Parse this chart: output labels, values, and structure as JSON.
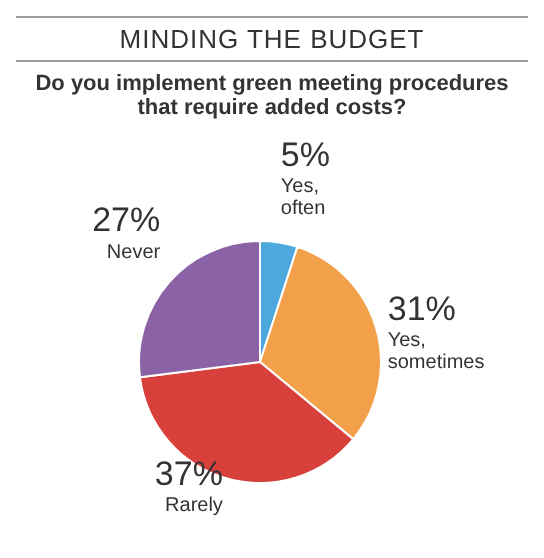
{
  "chart_data": {
    "type": "pie",
    "title": "MINDING THE BUDGET",
    "subtitle": "Do you implement green meeting procedures that require added costs?",
    "categories": [
      "Yes, often",
      "Yes, sometimes",
      "Rarely",
      "Never"
    ],
    "values": [
      5,
      31,
      37,
      27
    ],
    "colors": [
      "#4da8dc",
      "#f2a14a",
      "#d8403c",
      "#8b62a6"
    ],
    "value_labels": [
      "5%",
      "31%",
      "37%",
      "27%"
    ],
    "legend": false
  }
}
